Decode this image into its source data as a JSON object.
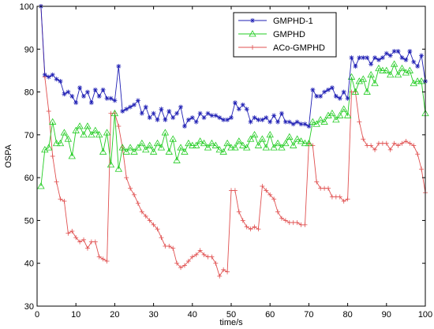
{
  "chart_data": {
    "type": "line",
    "title": "",
    "xlabel": "time/s",
    "ylabel": "OSPA",
    "xlim": [
      0,
      100
    ],
    "ylim": [
      30,
      100
    ],
    "x_ticks": [
      0,
      10,
      20,
      30,
      40,
      50,
      60,
      70,
      80,
      90,
      100
    ],
    "y_ticks": [
      30,
      40,
      50,
      60,
      70,
      80,
      90,
      100
    ],
    "grid": false,
    "legend_position": "top-right",
    "x": [
      1,
      2,
      3,
      4,
      5,
      6,
      7,
      8,
      9,
      10,
      11,
      12,
      13,
      14,
      15,
      16,
      17,
      18,
      19,
      20,
      21,
      22,
      23,
      24,
      25,
      26,
      27,
      28,
      29,
      30,
      31,
      32,
      33,
      34,
      35,
      36,
      37,
      38,
      39,
      40,
      41,
      42,
      43,
      44,
      45,
      46,
      47,
      48,
      49,
      50,
      51,
      52,
      53,
      54,
      55,
      56,
      57,
      58,
      59,
      60,
      61,
      62,
      63,
      64,
      65,
      66,
      67,
      68,
      69,
      70,
      71,
      72,
      73,
      74,
      75,
      76,
      77,
      78,
      79,
      80,
      81,
      82,
      83,
      84,
      85,
      86,
      87,
      88,
      89,
      90,
      91,
      92,
      93,
      94,
      95,
      96,
      97,
      98,
      99,
      100
    ],
    "series": [
      {
        "name": "GMPHD-1",
        "color": "#1f1fb4",
        "marker": "star",
        "values": [
          100,
          84,
          83.5,
          84,
          83,
          82.5,
          79.5,
          80,
          79,
          77.5,
          81,
          79,
          80,
          77.5,
          80.5,
          79,
          80.5,
          78.5,
          78.5,
          78,
          86,
          75.5,
          76,
          76.5,
          77,
          78,
          75,
          76.5,
          74,
          75,
          73.5,
          76,
          73.5,
          75.5,
          74,
          75,
          76.5,
          72,
          73.5,
          74,
          73,
          75,
          74,
          75,
          74.5,
          74.5,
          74,
          73.5,
          73.5,
          74,
          77.5,
          76,
          77,
          76,
          73,
          74,
          73.5,
          73.5,
          74,
          73,
          74.5,
          73,
          75,
          73,
          73,
          72.5,
          73,
          72.5,
          72.5,
          72,
          80.5,
          79,
          79,
          80,
          80.5,
          81,
          79,
          78.5,
          80,
          78.5,
          88,
          86,
          88,
          88,
          88,
          86.5,
          88,
          87.5,
          88,
          89,
          88.5,
          89.5,
          89.5,
          88,
          87.5,
          89.5,
          87,
          86,
          88.5,
          82.5
        ]
      },
      {
        "name": "GMPHD",
        "color": "#22cc22",
        "marker": "triangle",
        "values": [
          58,
          66.5,
          67,
          73,
          68,
          68,
          70.5,
          69,
          65,
          71,
          72,
          70,
          72,
          70,
          71,
          70,
          66,
          70.5,
          63,
          75,
          62,
          67,
          66,
          67,
          66,
          67,
          68,
          66.5,
          67.5,
          66,
          68,
          67,
          70.5,
          66,
          69,
          64,
          67,
          66,
          68,
          67.5,
          67.5,
          68.5,
          68,
          67,
          68,
          67.5,
          66.5,
          66,
          68,
          67,
          67,
          68.5,
          67.5,
          67,
          69,
          70,
          67.5,
          69,
          67,
          70,
          67,
          68,
          67,
          68,
          69.5,
          67.5,
          69,
          68.5,
          68,
          68,
          73,
          72.5,
          73.5,
          73,
          74.5,
          75,
          73.5,
          74.5,
          76,
          74.5,
          83.5,
          80,
          82.5,
          83,
          80,
          84,
          82,
          85.5,
          85,
          85,
          84,
          86.5,
          84,
          85.5,
          84.5,
          85,
          82,
          82.5,
          82.5,
          75
        ]
      },
      {
        "name": "ACo-GMPHD",
        "color": "#e05050",
        "marker": "plus",
        "values": [
          100,
          83.5,
          75.5,
          65,
          59,
          55,
          54.5,
          47,
          47.5,
          46,
          45,
          45.5,
          43.5,
          45,
          45,
          41.5,
          41,
          40.5,
          75,
          75,
          72,
          67,
          60,
          57.5,
          56,
          54,
          52,
          51,
          50,
          49,
          48,
          46,
          44,
          44,
          43.5,
          40,
          39,
          39.5,
          40.5,
          41.5,
          42,
          43,
          42,
          41.5,
          41.5,
          40,
          37,
          38.5,
          38,
          57,
          57,
          52,
          50,
          48.5,
          48,
          48.5,
          48,
          58,
          57,
          56,
          55,
          52,
          50.5,
          50,
          49.5,
          49.5,
          49.5,
          49,
          49,
          68,
          67.5,
          59,
          57.5,
          57.5,
          57.5,
          55.5,
          55.5,
          55.5,
          54.5,
          55,
          80,
          80,
          73,
          69,
          67.5,
          67.5,
          66.5,
          68,
          68,
          68,
          66.5,
          68,
          67.5,
          68,
          68.5,
          68,
          67.5,
          65.5,
          62,
          56.5
        ]
      }
    ]
  }
}
